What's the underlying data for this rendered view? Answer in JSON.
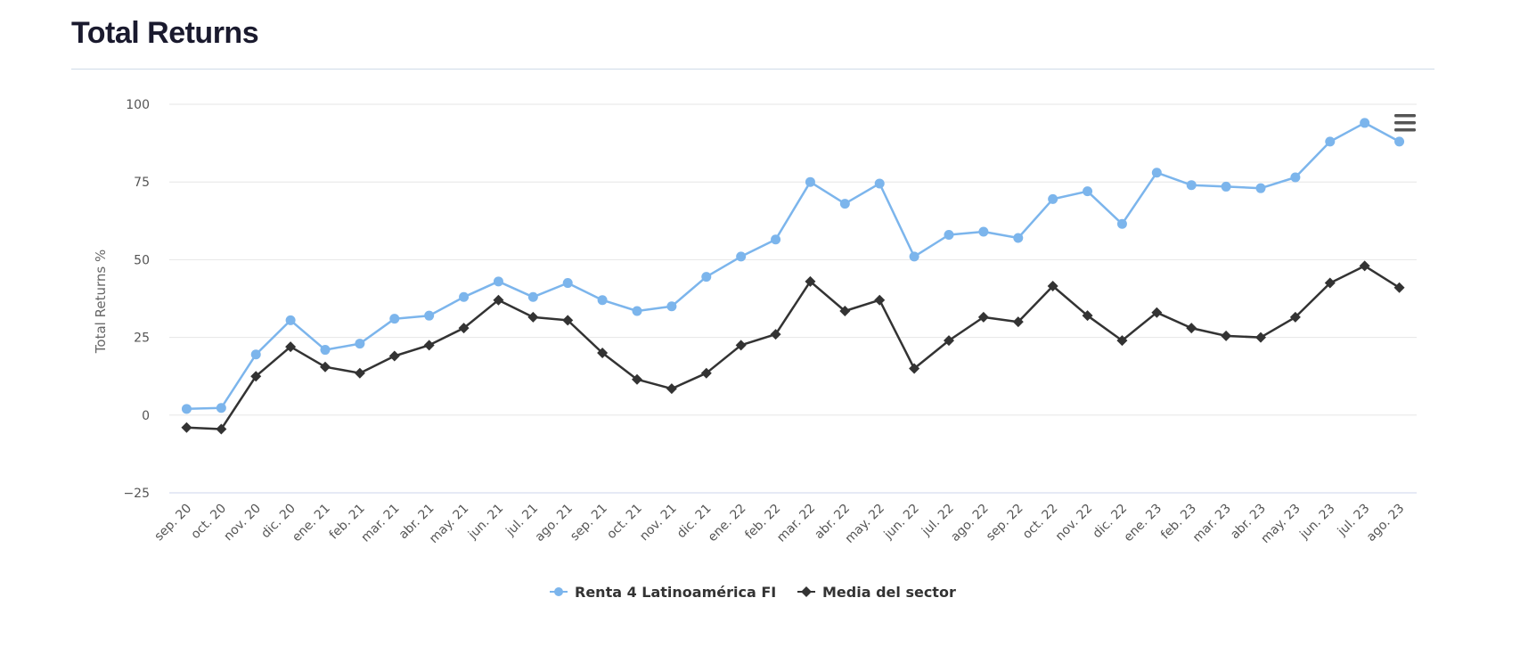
{
  "page": {
    "title": "Total Returns"
  },
  "colors": {
    "fund": "#7cb5ec",
    "sector": "#333333",
    "grid": "#e6e6e6"
  },
  "chart_data": {
    "type": "line",
    "title": "Total Returns",
    "ylabel": "Total Returns %",
    "xlabel": "",
    "ylim": [
      -25,
      100
    ],
    "yticks": [
      -25,
      0,
      25,
      50,
      75,
      100
    ],
    "grid": true,
    "legend": "bottom-center",
    "menu_icon": "hamburger-menu-icon",
    "categories": [
      "sep. 20",
      "oct. 20",
      "nov. 20",
      "dic. 20",
      "ene. 21",
      "feb. 21",
      "mar. 21",
      "abr. 21",
      "may. 21",
      "jun. 21",
      "jul. 21",
      "ago. 21",
      "sep. 21",
      "oct. 21",
      "nov. 21",
      "dic. 21",
      "ene. 22",
      "feb. 22",
      "mar. 22",
      "abr. 22",
      "may. 22",
      "jun. 22",
      "jul. 22",
      "ago. 22",
      "sep. 22",
      "oct. 22",
      "nov. 22",
      "dic. 22",
      "ene. 23",
      "feb. 23",
      "mar. 23",
      "abr. 23",
      "may. 23",
      "jun. 23",
      "jul. 23",
      "ago. 23"
    ],
    "series": [
      {
        "name": "Renta 4 Latinoamérica FI",
        "marker": "circle",
        "values": [
          2,
          2.3,
          19.5,
          30.5,
          21,
          23,
          31,
          32,
          38,
          43,
          38,
          42.5,
          37,
          33.5,
          35,
          44.5,
          51,
          56.5,
          75,
          68,
          74.5,
          51,
          58,
          59,
          57,
          69.5,
          72,
          61.5,
          78,
          74,
          73.5,
          73,
          76.5,
          88,
          94,
          88
        ]
      },
      {
        "name": "Media del sector",
        "marker": "diamond",
        "values": [
          -4,
          -4.5,
          12.5,
          22,
          15.5,
          13.5,
          19,
          22.5,
          28,
          37,
          31.5,
          30.5,
          20,
          11.5,
          8.5,
          13.5,
          22.5,
          26,
          43,
          33.5,
          37,
          15,
          24,
          31.5,
          30,
          41.5,
          32,
          24,
          33,
          28,
          25.5,
          25,
          31.5,
          42.5,
          48,
          41
        ]
      }
    ]
  }
}
